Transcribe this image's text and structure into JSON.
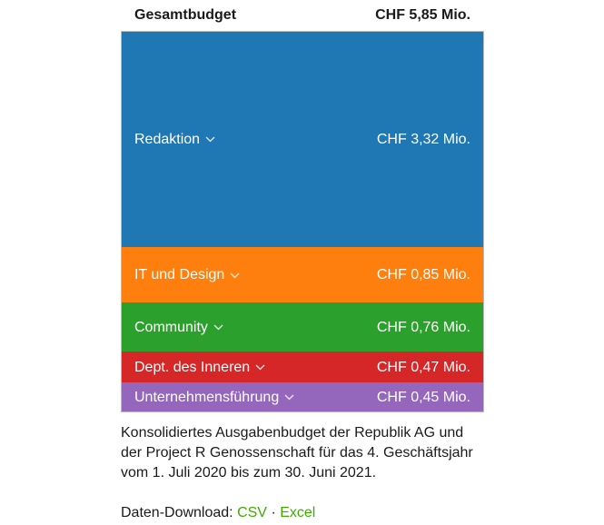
{
  "chart_data": {
    "type": "treemap",
    "total": {
      "label": "Gesamtbudget",
      "value_label": "CHF 5,85 Mio.",
      "value": 5.85
    },
    "unit": "CHF Mio.",
    "categories": [
      {
        "name": "Redaktion",
        "value": 3.32,
        "value_label": "CHF 3,32 Mio.",
        "color": "#1f77b4"
      },
      {
        "name": "IT und Design",
        "value": 0.85,
        "value_label": "CHF 0,85 Mio.",
        "color": "#ff7f0e"
      },
      {
        "name": "Community",
        "value": 0.76,
        "value_label": "CHF 0,76 Mio.",
        "color": "#2ca02c"
      },
      {
        "name": "Dept. des Inneren",
        "value": 0.47,
        "value_label": "CHF 0,47 Mio.",
        "color": "#d62728"
      },
      {
        "name": "Unternehmensführung",
        "value": 0.45,
        "value_label": "CHF 0,45 Mio.",
        "color": "#9467bd"
      }
    ]
  },
  "caption": {
    "line1": "Konsolidiertes Ausgabenbudget der Republik AG und",
    "line2": "der Project R Genossenschaft für das 4. Geschäftsjahr",
    "line3": "vom 1. Juli 2020 bis zum 30. Juni 2021."
  },
  "download": {
    "label": "Daten-Download:",
    "csv": "CSV",
    "separator": "·",
    "excel": "Excel",
    "link_color": "#3cad00"
  }
}
